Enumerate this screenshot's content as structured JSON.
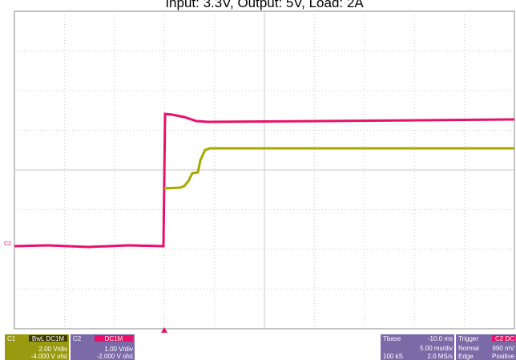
{
  "header": {
    "title": "Input: 3.3V, Output: 5V, Load: 2A"
  },
  "channels": [
    {
      "label": "C1",
      "coupling": "BwL DC1M",
      "scale": "2.00 V/div",
      "offset": "-4.000 V ofst"
    },
    {
      "label": "C2",
      "coupling": "DC1M",
      "scale": "1.00 V/div",
      "offset": "-2.000 V ofst"
    }
  ],
  "trace_marker": "C2",
  "timebase": {
    "label": "Tbase",
    "delay": "-10.0 ms",
    "scale": "5.00 ms/div",
    "points": "100 kS",
    "rate": "2.0 MS/s"
  },
  "trigger": {
    "label": "Trigger",
    "source": "C2 DC",
    "mode": "Normal",
    "level": "990 mV",
    "type": "Edge",
    "slope": "Positive"
  }
}
